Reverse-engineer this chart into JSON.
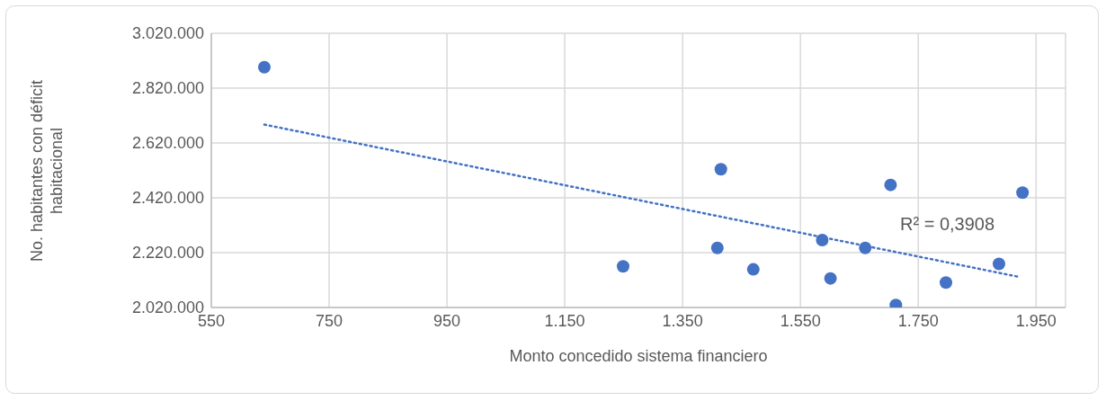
{
  "chart_data": {
    "type": "scatter",
    "xlabel": "Monto concedido sistema financiero",
    "ylabel": "No. habitantes con déficit habitacional",
    "xlim": [
      550,
      2000
    ],
    "xticks": [
      550,
      750,
      950,
      {
        "value": 1150,
        "label": "1.150"
      },
      {
        "value": 1350,
        "label": "1.350"
      },
      {
        "value": 1550,
        "label": "1.550"
      },
      {
        "value": 1750,
        "label": "1.750"
      },
      {
        "value": 1950,
        "label": "1.950"
      }
    ],
    "ylim": [
      2020000,
      3020000
    ],
    "yticks": [
      {
        "value": 2020000,
        "label": "2.020.000"
      },
      {
        "value": 2220000,
        "label": "2.220.000"
      },
      {
        "value": 2420000,
        "label": "2.420.000"
      },
      {
        "value": 2620000,
        "label": "2.620.000"
      },
      {
        "value": 2820000,
        "label": "2.820.000"
      },
      {
        "value": 3020000,
        "label": "3.020.000"
      }
    ],
    "grid": true,
    "series": [
      {
        "marker": "circle",
        "color": "#4472c4",
        "x": [
          640,
          1249,
          1415,
          1409,
          1470,
          1587,
          1601,
          1660,
          1703,
          1712,
          1797,
          1887,
          1927
        ],
        "values": [
          2896000,
          2170000,
          2524000,
          2237000,
          2159000,
          2266000,
          2126000,
          2237000,
          2467000,
          2029000,
          2111000,
          2179000,
          2439000
        ]
      },
      {
        "type": "line",
        "color": "#4472c4",
        "line_style": "dotted",
        "x": [
          640,
          1918
        ],
        "values": [
          2687000,
          2133000
        ]
      }
    ],
    "annotations": [
      "R² = 0,3908"
    ]
  }
}
